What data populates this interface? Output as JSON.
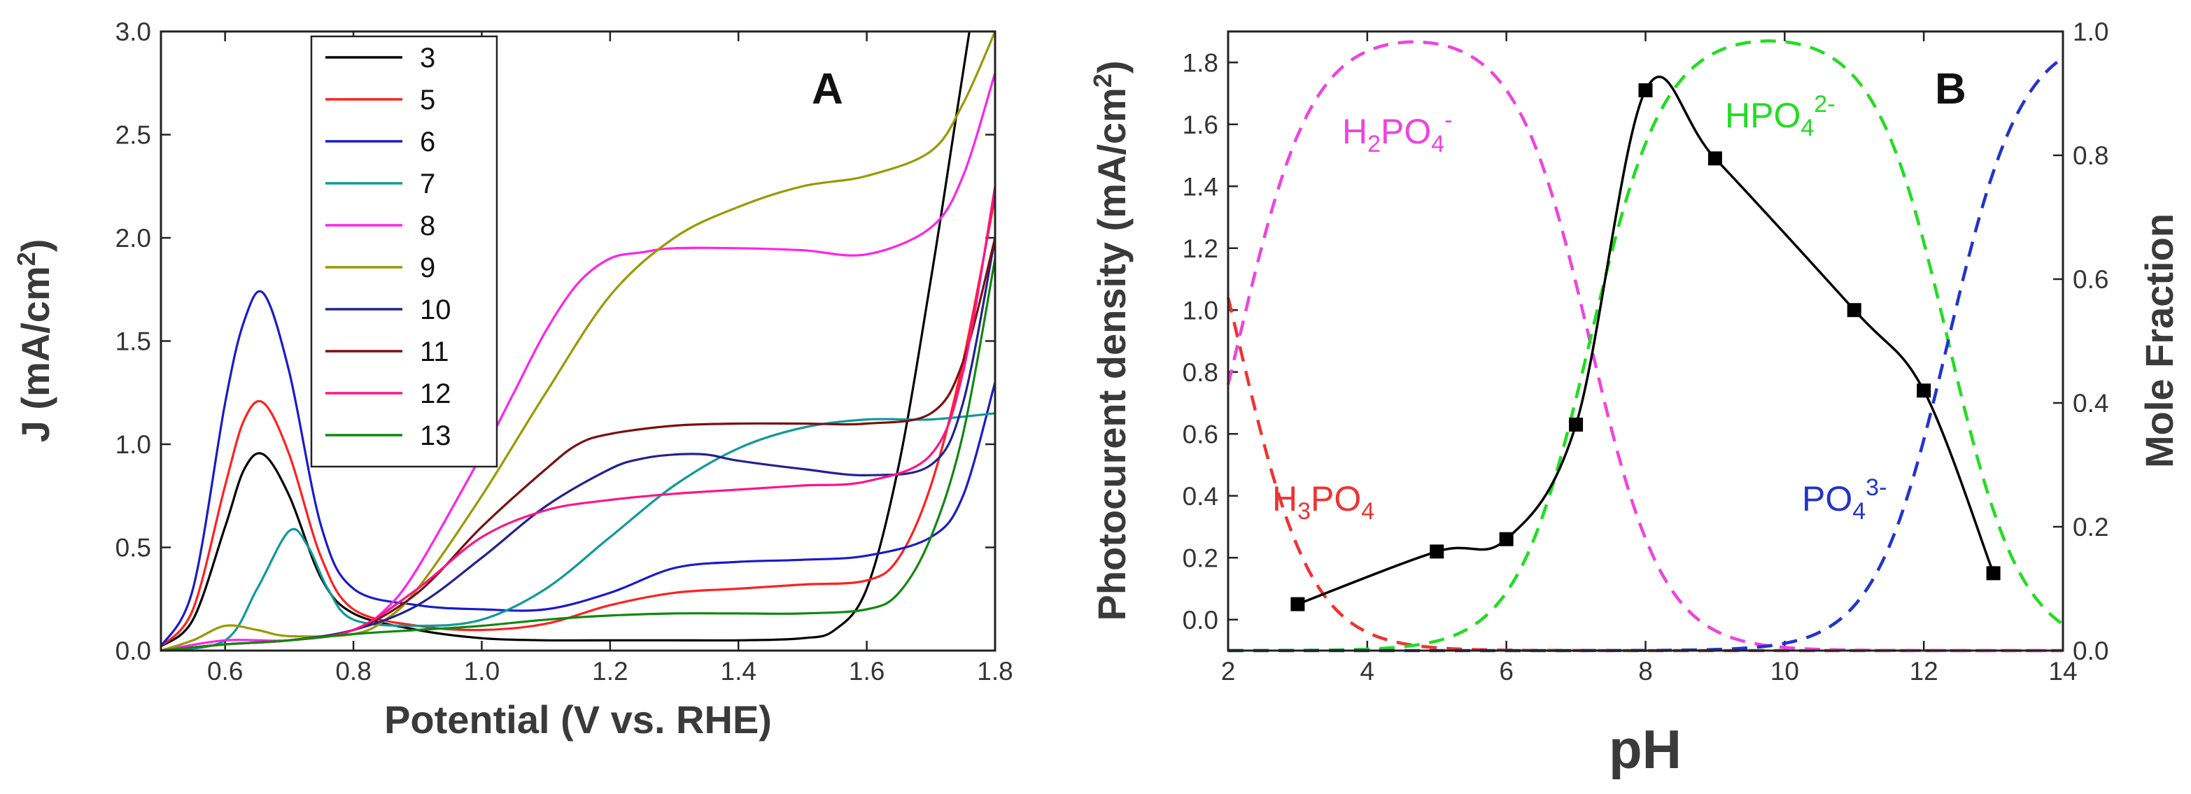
{
  "chart_data": [
    {
      "type": "line",
      "panel_label": "A",
      "xlabel": "Potential (V vs. RHE)",
      "ylabel": {
        "base": "J (mA/cm",
        "sup": "2",
        "end": ")"
      },
      "xlim": [
        0.5,
        1.8
      ],
      "ylim": [
        0.0,
        3.0
      ],
      "xticks": [
        "0.6",
        "0.8",
        "1.0",
        "1.2",
        "1.4",
        "1.6",
        "1.8"
      ],
      "xtick_values": [
        0.6,
        0.8,
        1.0,
        1.2,
        1.4,
        1.6,
        1.8
      ],
      "yticks": [
        "0.0",
        "0.5",
        "1.0",
        "1.5",
        "2.0",
        "2.5",
        "3.0"
      ],
      "ytick_values": [
        0.0,
        0.5,
        1.0,
        1.5,
        2.0,
        2.5,
        3.0
      ],
      "legend_position": "top-center",
      "series": [
        {
          "name": "3",
          "color": "#000000",
          "x": [
            0.5,
            0.55,
            0.6,
            0.63,
            0.66,
            0.7,
            0.75,
            0.8,
            0.9,
            1.0,
            1.1,
            1.2,
            1.3,
            1.4,
            1.5,
            1.55,
            1.6,
            1.65,
            1.7,
            1.74,
            1.76
          ],
          "y": [
            0.02,
            0.15,
            0.6,
            0.88,
            0.95,
            0.75,
            0.35,
            0.18,
            0.1,
            0.06,
            0.05,
            0.05,
            0.05,
            0.05,
            0.06,
            0.1,
            0.3,
            0.9,
            1.8,
            2.6,
            3.0
          ]
        },
        {
          "name": "5",
          "color": "#ff2020",
          "x": [
            0.5,
            0.55,
            0.6,
            0.63,
            0.66,
            0.7,
            0.75,
            0.8,
            0.9,
            1.0,
            1.1,
            1.2,
            1.3,
            1.4,
            1.5,
            1.6,
            1.65,
            1.7,
            1.75,
            1.8
          ],
          "y": [
            0.02,
            0.2,
            0.8,
            1.12,
            1.2,
            0.95,
            0.45,
            0.2,
            0.12,
            0.1,
            0.13,
            0.22,
            0.28,
            0.3,
            0.32,
            0.34,
            0.45,
            0.8,
            1.4,
            2.2
          ]
        },
        {
          "name": "6",
          "color": "#1a1acc",
          "x": [
            0.5,
            0.55,
            0.6,
            0.63,
            0.66,
            0.7,
            0.75,
            0.8,
            0.9,
            1.0,
            1.1,
            1.2,
            1.3,
            1.4,
            1.5,
            1.6,
            1.7,
            1.75,
            1.8
          ],
          "y": [
            0.02,
            0.3,
            1.2,
            1.6,
            1.73,
            1.35,
            0.6,
            0.3,
            0.22,
            0.2,
            0.2,
            0.28,
            0.4,
            0.43,
            0.44,
            0.46,
            0.55,
            0.75,
            1.3
          ]
        },
        {
          "name": "7",
          "color": "#119999",
          "x": [
            0.5,
            0.6,
            0.65,
            0.7,
            0.73,
            0.76,
            0.8,
            0.9,
            1.0,
            1.1,
            1.2,
            1.3,
            1.4,
            1.5,
            1.6,
            1.7,
            1.8
          ],
          "y": [
            0.0,
            0.05,
            0.3,
            0.58,
            0.5,
            0.3,
            0.15,
            0.12,
            0.15,
            0.3,
            0.55,
            0.8,
            0.98,
            1.08,
            1.12,
            1.12,
            1.15
          ]
        },
        {
          "name": "8",
          "color": "#ff22ee",
          "x": [
            0.5,
            0.6,
            0.7,
            0.8,
            0.85,
            0.9,
            1.0,
            1.05,
            1.1,
            1.15,
            1.2,
            1.25,
            1.3,
            1.4,
            1.5,
            1.6,
            1.7,
            1.75,
            1.8
          ],
          "y": [
            0.0,
            0.05,
            0.05,
            0.1,
            0.2,
            0.4,
            0.95,
            1.25,
            1.55,
            1.78,
            1.9,
            1.93,
            1.95,
            1.95,
            1.94,
            1.92,
            2.05,
            2.3,
            2.8
          ]
        },
        {
          "name": "9",
          "color": "#999900",
          "x": [
            0.5,
            0.55,
            0.6,
            0.65,
            0.7,
            0.8,
            0.85,
            0.9,
            1.0,
            1.1,
            1.2,
            1.3,
            1.4,
            1.5,
            1.6,
            1.7,
            1.75,
            1.8
          ],
          "y": [
            0.0,
            0.05,
            0.12,
            0.1,
            0.07,
            0.08,
            0.15,
            0.3,
            0.75,
            1.25,
            1.72,
            2.0,
            2.15,
            2.25,
            2.3,
            2.42,
            2.65,
            3.0
          ]
        },
        {
          "name": "10",
          "color": "#22228f",
          "x": [
            0.5,
            0.6,
            0.7,
            0.8,
            0.9,
            1.0,
            1.1,
            1.2,
            1.25,
            1.3,
            1.35,
            1.4,
            1.5,
            1.6,
            1.7,
            1.75,
            1.8
          ],
          "y": [
            0.0,
            0.03,
            0.05,
            0.1,
            0.22,
            0.45,
            0.7,
            0.88,
            0.93,
            0.95,
            0.95,
            0.92,
            0.88,
            0.85,
            0.9,
            1.2,
            2.0
          ]
        },
        {
          "name": "11",
          "color": "#7a1010",
          "x": [
            0.5,
            0.6,
            0.7,
            0.8,
            0.9,
            1.0,
            1.1,
            1.15,
            1.2,
            1.3,
            1.4,
            1.5,
            1.6,
            1.7,
            1.75,
            1.8
          ],
          "y": [
            0.0,
            0.03,
            0.05,
            0.1,
            0.28,
            0.6,
            0.88,
            1.0,
            1.05,
            1.09,
            1.1,
            1.1,
            1.1,
            1.15,
            1.4,
            2.0
          ]
        },
        {
          "name": "12",
          "color": "#ff1488",
          "x": [
            0.5,
            0.6,
            0.7,
            0.8,
            0.9,
            1.0,
            1.1,
            1.2,
            1.3,
            1.4,
            1.5,
            1.6,
            1.7,
            1.75,
            1.8
          ],
          "y": [
            0.0,
            0.03,
            0.05,
            0.1,
            0.3,
            0.55,
            0.68,
            0.73,
            0.76,
            0.78,
            0.8,
            0.82,
            0.95,
            1.35,
            2.25
          ]
        },
        {
          "name": "13",
          "color": "#118811",
          "x": [
            0.5,
            0.6,
            0.7,
            0.8,
            0.9,
            1.0,
            1.1,
            1.2,
            1.3,
            1.4,
            1.5,
            1.6,
            1.65,
            1.7,
            1.75,
            1.8
          ],
          "y": [
            0.0,
            0.03,
            0.05,
            0.08,
            0.1,
            0.12,
            0.15,
            0.17,
            0.18,
            0.18,
            0.18,
            0.2,
            0.28,
            0.55,
            1.05,
            1.9
          ]
        }
      ]
    },
    {
      "type": "line+scatter",
      "panel_label": "B",
      "xlabel": "pH",
      "ylabel_left": {
        "base": "Photocurent density (mA/cm",
        "sup": "2",
        "end": ")"
      },
      "ylabel_right": "Mole Fraction",
      "xlim": [
        2,
        14
      ],
      "ylim_left": [
        -0.1,
        1.9
      ],
      "ylim_right": [
        0.0,
        1.0
      ],
      "xticks": [
        "2",
        "4",
        "6",
        "8",
        "10",
        "12",
        "14"
      ],
      "xtick_values": [
        2,
        4,
        6,
        8,
        10,
        12,
        14
      ],
      "yticks_left": [
        "0.0",
        "0.2",
        "0.4",
        "0.6",
        "0.8",
        "1.0",
        "1.2",
        "1.4",
        "1.6",
        "1.8"
      ],
      "ytick_values_left": [
        0.0,
        0.2,
        0.4,
        0.6,
        0.8,
        1.0,
        1.2,
        1.4,
        1.6,
        1.8
      ],
      "yticks_right": [
        "0.0",
        "0.2",
        "0.4",
        "0.6",
        "0.8",
        "1.0"
      ],
      "ytick_values_right": [
        0.0,
        0.2,
        0.4,
        0.6,
        0.8,
        1.0
      ],
      "photocurrent": {
        "name": "Photocurrent density",
        "color": "#000000",
        "pH": [
          3,
          5,
          6,
          7,
          8,
          9,
          11,
          12,
          13
        ],
        "values": [
          0.05,
          0.22,
          0.26,
          0.63,
          1.71,
          1.49,
          1.0,
          0.74,
          0.15
        ]
      },
      "species": [
        {
          "name": "H3PO4",
          "label": {
            "base": "H",
            "sub1": "3",
            "mid": "PO",
            "sub2": "4",
            "sup": ""
          },
          "color": "#ee3333",
          "pKa_low": null,
          "pKa_high": 2.15
        },
        {
          "name": "H2PO4-",
          "label": {
            "base": "H",
            "sub1": "2",
            "mid": "PO",
            "sub2": "4",
            "sup": "-"
          },
          "color": "#ee44dd",
          "pKa_low": 2.15,
          "pKa_high": 7.2
        },
        {
          "name": "HPO42-",
          "label": {
            "base": "HPO",
            "sub1": "",
            "mid": "",
            "sub2": "4",
            "sup": "2-"
          },
          "color": "#22dd22",
          "pKa_low": 7.2,
          "pKa_high": 12.35
        },
        {
          "name": "PO43-",
          "label": {
            "base": "PO",
            "sub1": "",
            "mid": "",
            "sub2": "4",
            "sup": "3-"
          },
          "color": "#2233cc",
          "pKa_low": 12.35,
          "pKa_high": null
        }
      ]
    }
  ]
}
